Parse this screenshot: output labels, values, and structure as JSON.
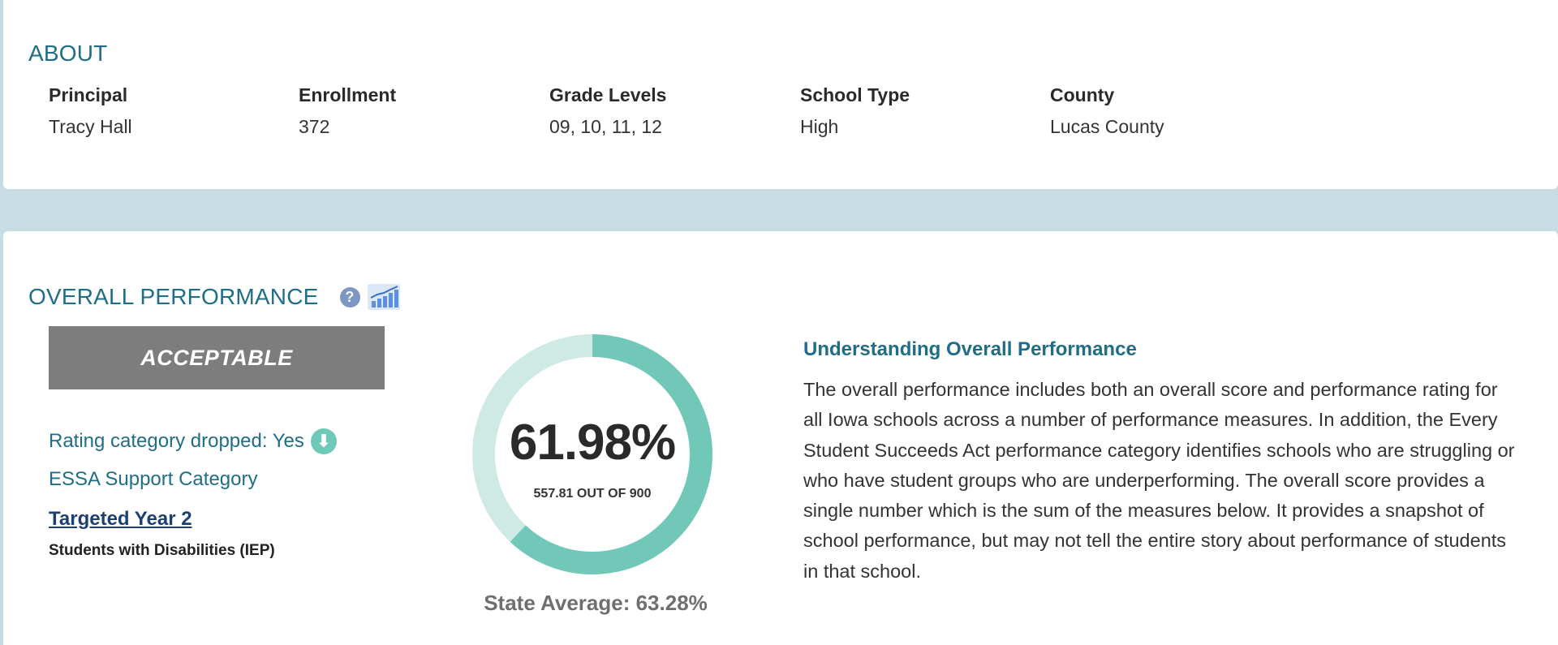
{
  "about": {
    "title": "ABOUT",
    "fields": [
      {
        "label": "Principal",
        "value": "Tracy Hall"
      },
      {
        "label": "Enrollment",
        "value": "372"
      },
      {
        "label": "Grade Levels",
        "value": "09, 10, 11, 12"
      },
      {
        "label": "School Type",
        "value": "High"
      },
      {
        "label": "County",
        "value": "Lucas County"
      }
    ]
  },
  "performance": {
    "title": "OVERALL PERFORMANCE",
    "help_icon": "question-circle-icon",
    "help_glyph": "?",
    "trend_icon": "bar-chart-icon",
    "rating": "ACCEPTABLE",
    "rating_dropped_label": "Rating category dropped: Yes",
    "rating_dropped_icon": "arrow-down-circle-icon",
    "rating_dropped_glyph": "⬇",
    "essa_label": "ESSA Support Category",
    "essa_link": "Targeted Year 2",
    "essa_group": "Students with Disabilities (IEP)",
    "score": {
      "percent_text": "61.98%",
      "percent_value": 61.98,
      "points_text": "557.81 OUT OF 900",
      "state_average_text": "State Average: 63.28%"
    },
    "understanding": {
      "title": "Understanding Overall Performance",
      "body": "The overall performance includes both an overall score and performance rating for all Iowa schools across a number of performance measures. In addition, the Every Student Succeeds Act performance category identifies schools who are struggling or who have student groups who are underperforming. The overall score provides a single number which is the sum of the measures below. It provides a snapshot of school performance, but may not tell the entire story about performance of students in that school."
    }
  },
  "colors": {
    "accent": "#1f6d86",
    "donut_fill": "#72c8b8",
    "donut_track": "#cfeae5",
    "rating_box": "#7d7d7d",
    "background": "#c7dce3"
  }
}
